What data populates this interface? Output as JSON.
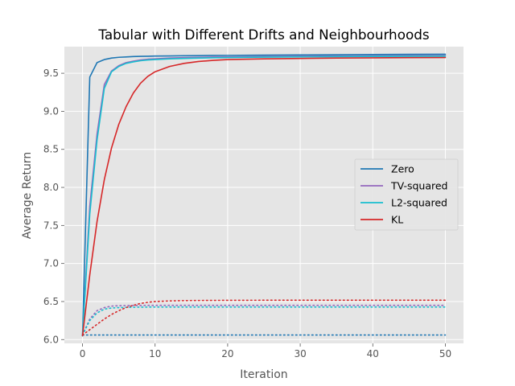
{
  "chart_data": {
    "type": "line",
    "title": "Tabular with Different Drifts and Neighbourhoods",
    "xlabel": "Iteration",
    "ylabel": "Average Return",
    "xlim": [
      -2.5,
      52.5
    ],
    "ylim": [
      5.95,
      9.85
    ],
    "xticks": [
      0,
      10,
      20,
      30,
      40,
      50
    ],
    "yticks": [
      6.0,
      6.5,
      7.0,
      7.5,
      8.0,
      8.5,
      9.0,
      9.5
    ],
    "ytick_labels": [
      "6.0",
      "6.5",
      "7.0",
      "7.5",
      "8.0",
      "8.5",
      "9.0",
      "9.5"
    ],
    "grid": true,
    "legend_position": "center-right",
    "x": [
      0,
      1,
      2,
      3,
      4,
      5,
      6,
      7,
      8,
      9,
      10,
      12,
      14,
      16,
      18,
      20,
      25,
      30,
      35,
      40,
      45,
      50
    ],
    "series": [
      {
        "name": "Zero",
        "style": "solid",
        "color": "#1f77b4",
        "values": [
          6.05,
          9.45,
          9.64,
          9.68,
          9.7,
          9.71,
          9.715,
          9.72,
          9.722,
          9.724,
          9.726,
          9.728,
          9.73,
          9.732,
          9.734,
          9.735,
          9.738,
          9.741,
          9.744,
          9.747,
          9.749,
          9.75
        ]
      },
      {
        "name": "TV-squared",
        "style": "solid",
        "color": "#9467bd",
        "values": [
          6.05,
          7.75,
          8.7,
          9.35,
          9.53,
          9.6,
          9.64,
          9.66,
          9.675,
          9.685,
          9.69,
          9.7,
          9.705,
          9.71,
          9.713,
          9.715,
          9.72,
          9.724,
          9.727,
          9.729,
          9.731,
          9.732
        ]
      },
      {
        "name": "L2-squared",
        "style": "solid",
        "color": "#17becf",
        "values": [
          6.05,
          7.65,
          8.62,
          9.3,
          9.52,
          9.59,
          9.63,
          9.65,
          9.665,
          9.675,
          9.68,
          9.69,
          9.695,
          9.7,
          9.704,
          9.707,
          9.712,
          9.716,
          9.719,
          9.721,
          9.723,
          9.724
        ]
      },
      {
        "name": "KL",
        "style": "solid",
        "color": "#d62728",
        "values": [
          6.05,
          6.85,
          7.55,
          8.1,
          8.52,
          8.83,
          9.06,
          9.24,
          9.37,
          9.46,
          9.52,
          9.59,
          9.63,
          9.655,
          9.67,
          9.68,
          9.69,
          9.695,
          9.7,
          9.703,
          9.705,
          9.707
        ]
      },
      {
        "name": "",
        "style": "dotted",
        "color": "#1f77b4",
        "values": [
          6.06,
          6.06,
          6.06,
          6.06,
          6.06,
          6.06,
          6.06,
          6.06,
          6.06,
          6.06,
          6.06,
          6.06,
          6.06,
          6.06,
          6.06,
          6.06,
          6.06,
          6.06,
          6.06,
          6.06,
          6.06,
          6.06
        ]
      },
      {
        "name": "",
        "style": "dotted",
        "color": "#9467bd",
        "values": [
          6.06,
          6.27,
          6.38,
          6.42,
          6.44,
          6.445,
          6.447,
          6.448,
          6.449,
          6.45,
          6.45,
          6.45,
          6.45,
          6.45,
          6.45,
          6.45,
          6.45,
          6.45,
          6.45,
          6.45,
          6.45,
          6.45
        ]
      },
      {
        "name": "",
        "style": "dotted",
        "color": "#17becf",
        "values": [
          6.06,
          6.25,
          6.35,
          6.4,
          6.415,
          6.42,
          6.423,
          6.425,
          6.426,
          6.427,
          6.428,
          6.428,
          6.428,
          6.428,
          6.428,
          6.428,
          6.428,
          6.428,
          6.428,
          6.428,
          6.428,
          6.428
        ]
      },
      {
        "name": "",
        "style": "dotted",
        "color": "#d62728",
        "values": [
          6.06,
          6.13,
          6.2,
          6.27,
          6.33,
          6.38,
          6.42,
          6.45,
          6.475,
          6.49,
          6.5,
          6.508,
          6.512,
          6.514,
          6.515,
          6.516,
          6.517,
          6.517,
          6.517,
          6.517,
          6.517,
          6.517
        ]
      }
    ]
  }
}
